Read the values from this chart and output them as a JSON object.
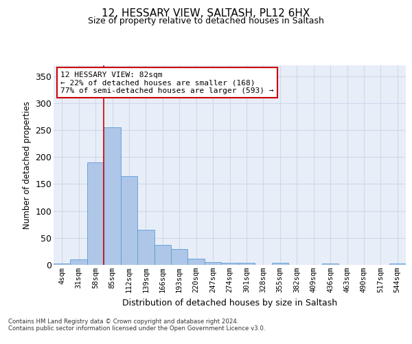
{
  "title1": "12, HESSARY VIEW, SALTASH, PL12 6HX",
  "title2": "Size of property relative to detached houses in Saltash",
  "xlabel": "Distribution of detached houses by size in Saltash",
  "ylabel": "Number of detached properties",
  "bin_labels": [
    "4sqm",
    "31sqm",
    "58sqm",
    "85sqm",
    "112sqm",
    "139sqm",
    "166sqm",
    "193sqm",
    "220sqm",
    "247sqm",
    "274sqm",
    "301sqm",
    "328sqm",
    "355sqm",
    "382sqm",
    "409sqm",
    "436sqm",
    "463sqm",
    "490sqm",
    "517sqm",
    "544sqm"
  ],
  "bar_heights": [
    2,
    10,
    190,
    255,
    165,
    65,
    37,
    29,
    11,
    5,
    4,
    4,
    0,
    4,
    0,
    0,
    3,
    0,
    0,
    0,
    2
  ],
  "bar_color": "#aec6e8",
  "bar_edge_color": "#5b9bd5",
  "bar_width": 1.0,
  "vline_x_index": 3,
  "vline_color": "#cc0000",
  "ylim": [
    0,
    370
  ],
  "yticks": [
    0,
    50,
    100,
    150,
    200,
    250,
    300,
    350
  ],
  "annotation_text": "12 HESSARY VIEW: 82sqm\n← 22% of detached houses are smaller (168)\n77% of semi-detached houses are larger (593) →",
  "annotation_box_color": "#ffffff",
  "annotation_box_edge": "#cc0000",
  "grid_color": "#d0d8e8",
  "bg_color": "#e8eef8",
  "footnote1": "Contains HM Land Registry data © Crown copyright and database right 2024.",
  "footnote2": "Contains public sector information licensed under the Open Government Licence v3.0."
}
